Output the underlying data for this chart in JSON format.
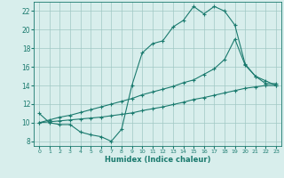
{
  "line1_x": [
    0,
    1,
    2,
    3,
    4,
    5,
    6,
    7,
    8,
    9,
    10,
    11,
    12,
    13,
    14,
    15,
    16,
    17,
    18,
    19,
    20,
    21,
    22,
    23
  ],
  "line1_y": [
    11,
    10,
    9.8,
    9.8,
    9,
    8.7,
    8.5,
    8,
    9.3,
    14,
    17.5,
    18.5,
    18.8,
    20.3,
    21,
    22.5,
    21.7,
    22.5,
    22.0,
    20.5,
    16.3,
    15.0,
    14.2,
    14.2
  ],
  "line2_x": [
    0,
    1,
    2,
    3,
    4,
    5,
    6,
    7,
    8,
    9,
    10,
    11,
    12,
    13,
    14,
    15,
    16,
    17,
    18,
    19,
    20,
    21,
    22,
    23
  ],
  "line2_y": [
    10,
    10.3,
    10.6,
    10.8,
    11.1,
    11.4,
    11.7,
    12.0,
    12.3,
    12.6,
    13.0,
    13.3,
    13.6,
    13.9,
    14.3,
    14.6,
    15.2,
    15.8,
    16.8,
    19.0,
    16.2,
    15.0,
    14.5,
    14.0
  ],
  "line3_x": [
    0,
    1,
    2,
    3,
    4,
    5,
    6,
    7,
    8,
    9,
    10,
    11,
    12,
    13,
    14,
    15,
    16,
    17,
    18,
    19,
    20,
    21,
    22,
    23
  ],
  "line3_y": [
    10,
    10.1,
    10.2,
    10.3,
    10.4,
    10.5,
    10.6,
    10.75,
    10.9,
    11.05,
    11.3,
    11.5,
    11.7,
    11.95,
    12.2,
    12.5,
    12.7,
    12.95,
    13.2,
    13.45,
    13.7,
    13.85,
    14.0,
    14.0
  ],
  "line_color": "#1a7a6e",
  "bg_color": "#d8eeec",
  "grid_color": "#a0c8c4",
  "xlabel": "Humidex (Indice chaleur)",
  "xlim": [
    -0.5,
    23.5
  ],
  "ylim": [
    7.5,
    23.0
  ],
  "xticks": [
    0,
    1,
    2,
    3,
    4,
    5,
    6,
    7,
    8,
    9,
    10,
    11,
    12,
    13,
    14,
    15,
    16,
    17,
    18,
    19,
    20,
    21,
    22,
    23
  ],
  "yticks": [
    8,
    10,
    12,
    14,
    16,
    18,
    20,
    22
  ],
  "marker": "+",
  "markersize": 3,
  "linewidth": 0.8
}
